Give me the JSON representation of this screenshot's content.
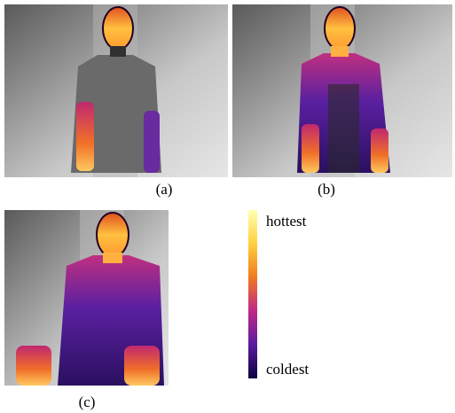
{
  "panels": [
    {
      "caption": "(a)"
    },
    {
      "caption": "(b)"
    },
    {
      "caption": "(c)"
    }
  ],
  "colorbar": {
    "top_label": "hottest",
    "bottom_label": "coldest"
  }
}
